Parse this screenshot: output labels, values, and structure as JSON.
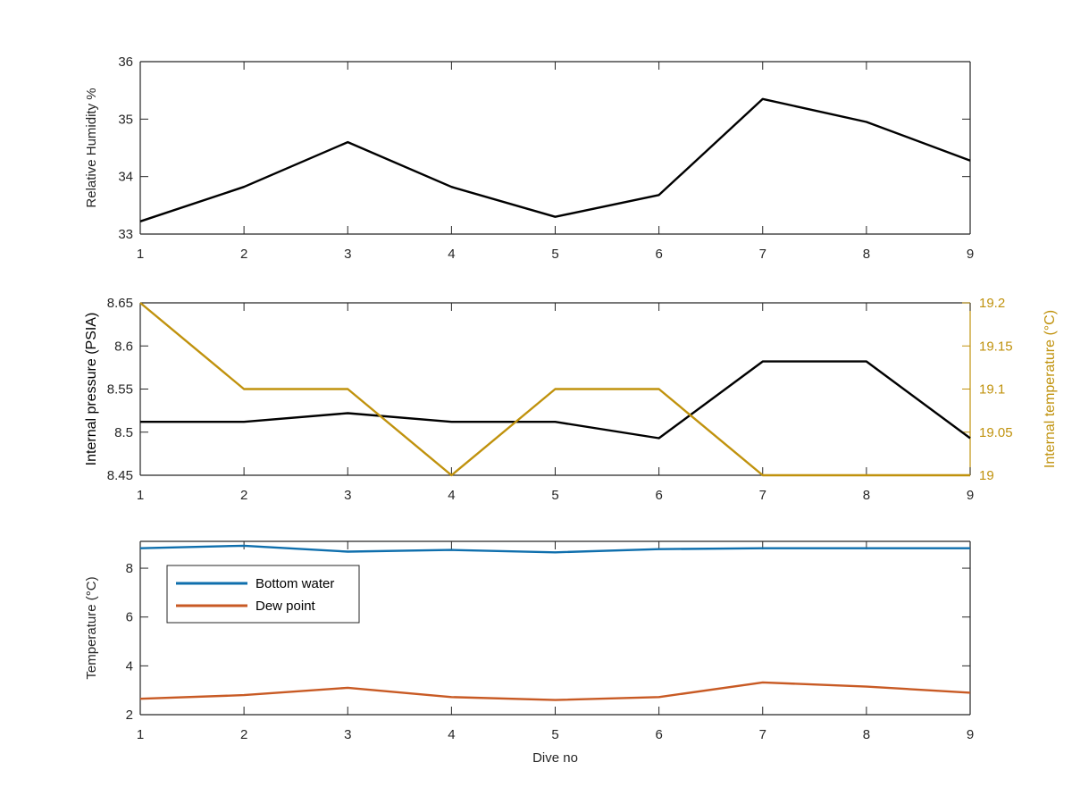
{
  "chart_data": [
    {
      "type": "line",
      "ylabel": "Relative Humidity %",
      "x": [
        1,
        2,
        3,
        4,
        5,
        6,
        7,
        8,
        9
      ],
      "xlim": [
        1,
        9
      ],
      "xticks": [
        "1",
        "2",
        "3",
        "4",
        "5",
        "6",
        "7",
        "8",
        "9"
      ],
      "ylim": [
        33,
        36
      ],
      "yticks": [
        "33",
        "34",
        "35",
        "36"
      ],
      "series": [
        {
          "color": "#000000",
          "values": [
            33.22,
            33.82,
            34.6,
            33.82,
            33.3,
            33.68,
            35.35,
            34.95,
            34.28
          ]
        }
      ]
    },
    {
      "type": "line",
      "ylabel": "Internal pressure (PSIA)",
      "ylabel_right": "Internal temperature (°C)",
      "x": [
        1,
        2,
        3,
        4,
        5,
        6,
        7,
        8,
        9
      ],
      "xlim": [
        1,
        9
      ],
      "xticks": [
        "1",
        "2",
        "3",
        "4",
        "5",
        "6",
        "7",
        "8",
        "9"
      ],
      "ylim": [
        8.45,
        8.65
      ],
      "yticks": [
        "8.45",
        "8.5",
        "8.55",
        "8.6",
        "8.65"
      ],
      "ylim_right": [
        19.0,
        19.2
      ],
      "yticks_right": [
        "19",
        "19.05",
        "19.1",
        "19.15",
        "19.2"
      ],
      "right_axis_color": "#c0920d",
      "series": [
        {
          "axis": "left",
          "color": "#000000",
          "values": [
            8.512,
            8.512,
            8.522,
            8.512,
            8.512,
            8.493,
            8.582,
            8.582,
            8.493
          ]
        },
        {
          "axis": "right",
          "color": "#c0920d",
          "values": [
            19.2,
            19.1,
            19.1,
            19.0,
            19.1,
            19.1,
            19.0,
            19.0,
            19.0
          ]
        }
      ]
    },
    {
      "type": "line",
      "ylabel": "Temperature (°C)",
      "xlabel": "Dive no",
      "x": [
        1,
        2,
        3,
        4,
        5,
        6,
        7,
        8,
        9
      ],
      "xlim": [
        1,
        9
      ],
      "xticks": [
        "1",
        "2",
        "3",
        "4",
        "5",
        "6",
        "7",
        "8",
        "9"
      ],
      "ylim": [
        2,
        9.1
      ],
      "yticks": [
        "2",
        "4",
        "6",
        "8"
      ],
      "legend": "top-left",
      "series": [
        {
          "name": "Bottom water",
          "color": "#0f6fad",
          "values": [
            8.82,
            8.92,
            8.68,
            8.75,
            8.65,
            8.78,
            8.82,
            8.82,
            8.82
          ]
        },
        {
          "name": "Dew point",
          "color": "#c85a24",
          "values": [
            2.65,
            2.8,
            3.1,
            2.72,
            2.6,
            2.72,
            3.32,
            3.15,
            2.9
          ]
        }
      ]
    }
  ]
}
